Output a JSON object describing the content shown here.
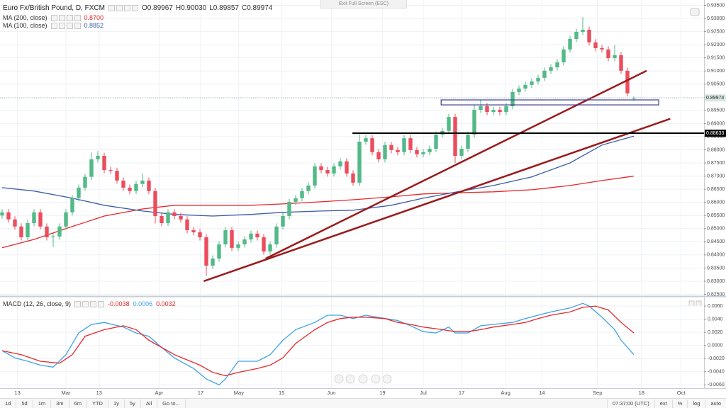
{
  "header": {
    "symbol": "Euro Fx/British Pound, D, FXCM",
    "ohlc": [
      "O0.89967",
      "H0.90030",
      "L0.89857",
      "C0.89974"
    ],
    "exit": "Exit Full Screen (ESC)"
  },
  "toolbar": {
    "ranges": [
      "1d",
      "5d",
      "1m",
      "3m",
      "6m",
      "YTD",
      "1y",
      "5y",
      "All",
      "Go to..."
    ],
    "time": "07:37:00 (UTC)",
    "options": [
      "ext",
      "%",
      "log",
      "auto"
    ]
  },
  "chart_data": [
    {
      "type": "candlestick",
      "up_color": "#53b987",
      "down_color": "#eb4d5c",
      "xlim": [
        -0.333,
        110
      ],
      "ylim": [
        0.825,
        0.935
      ],
      "grid": true,
      "xticks": [
        {
          "value": 2.4,
          "label": "13"
        },
        {
          "value": 10,
          "label": "Mar"
        },
        {
          "value": 15.2,
          "label": "13"
        },
        {
          "value": 24.6,
          "label": "Apr"
        },
        {
          "value": 31.1,
          "label": "17"
        },
        {
          "value": 37.1,
          "label": "May"
        },
        {
          "value": 43.8,
          "label": "15"
        },
        {
          "value": 51.6,
          "label": "Jun"
        },
        {
          "value": 59.6,
          "label": "19"
        },
        {
          "value": 66,
          "label": "Jul"
        },
        {
          "value": 72,
          "label": "17"
        },
        {
          "value": 78.9,
          "label": "Aug"
        },
        {
          "value": 84.6,
          "label": "14"
        },
        {
          "value": 93.3,
          "label": "Sep"
        },
        {
          "value": 100.2,
          "label": "18"
        },
        {
          "value": 106.4,
          "label": "Oct"
        }
      ],
      "yticks": [
        {
          "value": 0.825,
          "label": "0.82500"
        },
        {
          "value": 0.83,
          "label": "0.83000"
        },
        {
          "value": 0.835,
          "label": "0.83500"
        },
        {
          "value": 0.84,
          "label": "0.84000"
        },
        {
          "value": 0.845,
          "label": "0.84500"
        },
        {
          "value": 0.85,
          "label": "0.85000"
        },
        {
          "value": 0.855,
          "label": "0.85500"
        },
        {
          "value": 0.86,
          "label": "0.86000"
        },
        {
          "value": 0.865,
          "label": "0.86500"
        },
        {
          "value": 0.87,
          "label": "0.87000"
        },
        {
          "value": 0.875,
          "label": "0.87500"
        },
        {
          "value": 0.88,
          "label": "0.88000"
        },
        {
          "value": 0.885,
          "label": "0.88500"
        },
        {
          "value": 0.89,
          "label": "0.89000"
        },
        {
          "value": 0.895,
          "label": "0.89500"
        },
        {
          "value": 0.9,
          "label": "0.90000"
        },
        {
          "value": 0.905,
          "label": "0.90500"
        },
        {
          "value": 0.91,
          "label": "0.91000"
        },
        {
          "value": 0.915,
          "label": "0.91500"
        },
        {
          "value": 0.92,
          "label": "0.92000"
        },
        {
          "value": 0.925,
          "label": "0.92500"
        },
        {
          "value": 0.93,
          "label": "0.93000"
        },
        {
          "value": 0.935,
          "label": "0.93500"
        }
      ],
      "candles": [
        [
          0.855,
          0.8574,
          0.8538,
          0.8562
        ],
        [
          0.8562,
          0.8574,
          0.8523,
          0.8535
        ],
        [
          0.8535,
          0.8547,
          0.8496,
          0.8508
        ],
        [
          0.8508,
          0.852,
          0.8455,
          0.8467
        ],
        [
          0.8467,
          0.8533,
          0.8455,
          0.8521
        ],
        [
          0.8521,
          0.8574,
          0.8509,
          0.8562
        ],
        [
          0.8562,
          0.8574,
          0.8496,
          0.8508
        ],
        [
          0.8508,
          0.852,
          0.8455,
          0.8467
        ],
        [
          0.8467,
          0.8482,
          0.843,
          0.847
        ],
        [
          0.847,
          0.852,
          0.8458,
          0.8508
        ],
        [
          0.8508,
          0.8574,
          0.8496,
          0.8562
        ],
        [
          0.8562,
          0.8628,
          0.855,
          0.8616
        ],
        [
          0.8616,
          0.8668,
          0.8604,
          0.8656
        ],
        [
          0.8656,
          0.8709,
          0.8644,
          0.8697
        ],
        [
          0.8697,
          0.879,
          0.8685,
          0.8764
        ],
        [
          0.8764,
          0.8795,
          0.8752,
          0.8777
        ],
        [
          0.8777,
          0.8789,
          0.8711,
          0.8723
        ],
        [
          0.8723,
          0.8735,
          0.8708,
          0.872
        ],
        [
          0.872,
          0.8732,
          0.8671,
          0.8683
        ],
        [
          0.8683,
          0.8695,
          0.8644,
          0.8656
        ],
        [
          0.8656,
          0.8668,
          0.8631,
          0.8643
        ],
        [
          0.8643,
          0.8682,
          0.8631,
          0.867
        ],
        [
          0.867,
          0.871,
          0.8658,
          0.8683
        ],
        [
          0.8683,
          0.8695,
          0.8631,
          0.8643
        ],
        [
          0.8643,
          0.8655,
          0.852,
          0.8548
        ],
        [
          0.8548,
          0.856,
          0.8509,
          0.8521
        ],
        [
          0.8521,
          0.8574,
          0.8509,
          0.8562
        ],
        [
          0.8562,
          0.8574,
          0.8536,
          0.8548
        ],
        [
          0.8548,
          0.856,
          0.8523,
          0.8535
        ],
        [
          0.8535,
          0.8547,
          0.8482,
          0.8494
        ],
        [
          0.8494,
          0.8506,
          0.8474,
          0.8486
        ],
        [
          0.8486,
          0.8498,
          0.8455,
          0.8467
        ],
        [
          0.8467,
          0.8479,
          0.832,
          0.8359
        ],
        [
          0.8359,
          0.8398,
          0.8347,
          0.8386
        ],
        [
          0.8386,
          0.8452,
          0.8374,
          0.844
        ],
        [
          0.844,
          0.8506,
          0.8428,
          0.8494
        ],
        [
          0.8494,
          0.8506,
          0.8415,
          0.8427
        ],
        [
          0.8427,
          0.8452,
          0.8415,
          0.844
        ],
        [
          0.844,
          0.8471,
          0.8428,
          0.8459
        ],
        [
          0.8459,
          0.8493,
          0.8447,
          0.8481
        ],
        [
          0.8481,
          0.8493,
          0.8455,
          0.8467
        ],
        [
          0.8467,
          0.8479,
          0.8401,
          0.8413
        ],
        [
          0.8413,
          0.8452,
          0.8401,
          0.844
        ],
        [
          0.844,
          0.852,
          0.8428,
          0.8508
        ],
        [
          0.8508,
          0.856,
          0.8496,
          0.8548
        ],
        [
          0.8548,
          0.8614,
          0.8536,
          0.8602
        ],
        [
          0.8602,
          0.8628,
          0.859,
          0.8616
        ],
        [
          0.8616,
          0.8655,
          0.8604,
          0.8643
        ],
        [
          0.8643,
          0.8676,
          0.8631,
          0.8664
        ],
        [
          0.8664,
          0.8749,
          0.8652,
          0.8737
        ],
        [
          0.8737,
          0.8749,
          0.8711,
          0.8723
        ],
        [
          0.8723,
          0.8735,
          0.8698,
          0.871
        ],
        [
          0.871,
          0.8749,
          0.8698,
          0.8737
        ],
        [
          0.8737,
          0.8768,
          0.8725,
          0.8756
        ],
        [
          0.8756,
          0.8768,
          0.8698,
          0.871
        ],
        [
          0.871,
          0.8722,
          0.8663,
          0.8675
        ],
        [
          0.8675,
          0.886,
          0.8663,
          0.8831
        ],
        [
          0.8831,
          0.8856,
          0.8819,
          0.8844
        ],
        [
          0.8844,
          0.8856,
          0.8779,
          0.8791
        ],
        [
          0.8791,
          0.8803,
          0.8752,
          0.8764
        ],
        [
          0.8764,
          0.883,
          0.8752,
          0.8818
        ],
        [
          0.8818,
          0.883,
          0.8787,
          0.8799
        ],
        [
          0.8799,
          0.8811,
          0.8779,
          0.8791
        ],
        [
          0.8791,
          0.8856,
          0.8779,
          0.8844
        ],
        [
          0.8844,
          0.8856,
          0.8787,
          0.8799
        ],
        [
          0.8799,
          0.8811,
          0.8771,
          0.8783
        ],
        [
          0.8783,
          0.8803,
          0.8771,
          0.8791
        ],
        [
          0.8791,
          0.8816,
          0.8779,
          0.8804
        ],
        [
          0.8804,
          0.887,
          0.8792,
          0.8858
        ],
        [
          0.8858,
          0.8884,
          0.8846,
          0.8872
        ],
        [
          0.8872,
          0.8937,
          0.886,
          0.8925
        ],
        [
          0.8925,
          0.8937,
          0.875,
          0.8777
        ],
        [
          0.8777,
          0.8816,
          0.8765,
          0.8804
        ],
        [
          0.8804,
          0.887,
          0.8792,
          0.8858
        ],
        [
          0.8858,
          0.897,
          0.8846,
          0.8952
        ],
        [
          0.8952,
          0.899,
          0.894,
          0.8966
        ],
        [
          0.8966,
          0.8978,
          0.8932,
          0.8944
        ],
        [
          0.8944,
          0.8964,
          0.8932,
          0.8952
        ],
        [
          0.8952,
          0.8964,
          0.8932,
          0.8944
        ],
        [
          0.8944,
          0.8978,
          0.8932,
          0.8966
        ],
        [
          0.8966,
          0.9032,
          0.8954,
          0.902
        ],
        [
          0.902,
          0.9045,
          0.9008,
          0.9033
        ],
        [
          0.9033,
          0.9059,
          0.9021,
          0.9047
        ],
        [
          0.9047,
          0.9072,
          0.9035,
          0.906
        ],
        [
          0.906,
          0.9086,
          0.9048,
          0.9074
        ],
        [
          0.9074,
          0.9113,
          0.9062,
          0.9101
        ],
        [
          0.9101,
          0.9126,
          0.9089,
          0.9114
        ],
        [
          0.9114,
          0.9145,
          0.9102,
          0.9133
        ],
        [
          0.9133,
          0.9194,
          0.9121,
          0.9182
        ],
        [
          0.9182,
          0.9234,
          0.917,
          0.9222
        ],
        [
          0.9222,
          0.9261,
          0.921,
          0.9249
        ],
        [
          0.9249,
          0.9305,
          0.9237,
          0.9257
        ],
        [
          0.9257,
          0.9269,
          0.9197,
          0.9209
        ],
        [
          0.9209,
          0.9221,
          0.9175,
          0.9187
        ],
        [
          0.9187,
          0.9199,
          0.917,
          0.9182
        ],
        [
          0.9182,
          0.9194,
          0.9137,
          0.9149
        ],
        [
          0.9149,
          0.92,
          0.9137,
          0.916
        ],
        [
          0.916,
          0.9172,
          0.9089,
          0.9101
        ],
        [
          0.9101,
          0.9113,
          0.9003,
          0.9015
        ],
        [
          0.89967,
          0.9003,
          0.89857,
          0.89974
        ]
      ],
      "series": [
        {
          "name": "MA (200, close)",
          "last_label": "0.8700",
          "color": "#e8272b",
          "x": [
            0,
            5,
            11,
            16,
            22,
            27,
            33,
            39,
            44,
            50,
            55,
            61,
            66,
            72,
            77,
            83,
            89,
            94,
            99
          ],
          "values": [
            0.8427,
            0.8459,
            0.8508,
            0.8548,
            0.8575,
            0.8589,
            0.8589,
            0.8589,
            0.8594,
            0.8602,
            0.861,
            0.8621,
            0.8632,
            0.8637,
            0.864,
            0.8648,
            0.8664,
            0.8683,
            0.87
          ]
        },
        {
          "name": "MA (100, close)",
          "last_label": "0.8852",
          "color": "#3a5da6",
          "x": [
            0,
            5,
            11,
            16,
            22,
            27,
            33,
            39,
            44,
            50,
            55,
            61,
            66,
            72,
            77,
            83,
            89,
            94,
            99
          ],
          "values": [
            0.8656,
            0.8643,
            0.8616,
            0.8589,
            0.8567,
            0.8554,
            0.8548,
            0.8554,
            0.8562,
            0.8567,
            0.857,
            0.8589,
            0.8616,
            0.8643,
            0.8664,
            0.8697,
            0.875,
            0.8818,
            0.8852
          ]
        }
      ],
      "drawings": {
        "trend_color": "#9b1b1b",
        "trendlines": [
          {
            "x": [
              31.6,
              104.7
            ],
            "y": [
              0.83,
              0.8918
            ]
          },
          {
            "x": [
              41.3,
              101
            ],
            "y": [
              0.8386,
              0.9101
            ]
          }
        ],
        "box": {
          "x": [
            68.8,
            102.9
          ],
          "y": [
            0.899,
            0.8971
          ],
          "color": "#3b3b8f"
        },
        "hline": {
          "x": 54.9,
          "value": 0.88633,
          "color": "#000000"
        }
      }
    },
    {
      "type": "line",
      "title": "MACD (12, 26, close, 9)",
      "legend_values": [
        "-0.0038",
        "0.0006",
        "0.0032"
      ],
      "ylim": [
        -0.0065,
        0.0073
      ],
      "yticks": [
        {
          "value": 0.006,
          "label": "0.0060"
        },
        {
          "value": 0.004,
          "label": "0.0040"
        },
        {
          "value": 0.002,
          "label": "0.0020"
        },
        {
          "value": 0,
          "label": "0.0000"
        },
        {
          "value": -0.002,
          "label": "-0.0020"
        },
        {
          "value": -0.004,
          "label": "-0.0040"
        },
        {
          "value": -0.006,
          "label": "-0.0060"
        }
      ],
      "series": [
        {
          "color": "#3ea3e6",
          "x": [
            0,
            2,
            4,
            6,
            8,
            10,
            12,
            14,
            16,
            19,
            21,
            23,
            25,
            27,
            30,
            32,
            34,
            35,
            37,
            40,
            42,
            44,
            46,
            49,
            51,
            53,
            55,
            57,
            60,
            62,
            64,
            66,
            68,
            70,
            71,
            73,
            75,
            77,
            80,
            82,
            84,
            86,
            89,
            91,
            92,
            94,
            96,
            97,
            99
          ],
          "values": [
            -0.0008,
            -0.0019,
            -0.0024,
            -0.003,
            -0.0033,
            -0.0014,
            0.0019,
            0.0032,
            0.0035,
            0.0028,
            0.0019,
            0.0014,
            -0.0003,
            -0.0019,
            -0.0035,
            -0.0051,
            -0.006,
            -0.0051,
            -0.0024,
            -0.0024,
            -0.0014,
            0.0008,
            0.0024,
            0.0035,
            0.0046,
            0.0046,
            0.0041,
            0.0046,
            0.0041,
            0.0038,
            0.003,
            0.0021,
            0.0019,
            0.0028,
            0.0019,
            0.0019,
            0.003,
            0.0032,
            0.0035,
            0.0041,
            0.0046,
            0.0051,
            0.0057,
            0.0064,
            0.006,
            0.0043,
            0.0024,
            0.0008,
            -0.0014
          ]
        },
        {
          "color": "#e8272b",
          "x": [
            0,
            3,
            6,
            9,
            11,
            13,
            16,
            19,
            21,
            23,
            25,
            27,
            31,
            33,
            35,
            37,
            40,
            42,
            44,
            46,
            49,
            51,
            53,
            55,
            57,
            60,
            62,
            64,
            66,
            69,
            71,
            73,
            75,
            77,
            80,
            82,
            84,
            86,
            89,
            91,
            93,
            95,
            97,
            99
          ],
          "values": [
            -0.0008,
            -0.0014,
            -0.0024,
            -0.0027,
            -0.0014,
            0.0014,
            0.0024,
            0.003,
            0.0024,
            0.0008,
            -0.0003,
            -0.0014,
            -0.003,
            -0.0041,
            -0.0046,
            -0.0041,
            -0.0035,
            -0.003,
            -0.0019,
            0.0003,
            0.0024,
            0.0035,
            0.0041,
            0.0043,
            0.0043,
            0.0041,
            0.0035,
            0.0032,
            0.0028,
            0.0024,
            0.0021,
            0.0021,
            0.0024,
            0.0028,
            0.0032,
            0.0035,
            0.0041,
            0.0046,
            0.0051,
            0.0058,
            0.006,
            0.0054,
            0.0035,
            0.0019
          ]
        }
      ]
    }
  ]
}
